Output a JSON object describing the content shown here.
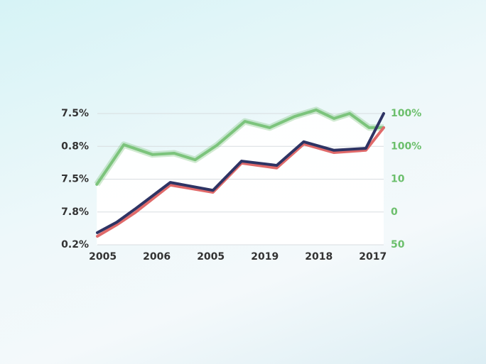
{
  "chart_data": {
    "type": "line",
    "xlim": [
      -0.1,
      5.2
    ],
    "xticks": [
      {
        "value": 0,
        "label": "2005"
      },
      {
        "value": 1,
        "label": "2006"
      },
      {
        "value": 2,
        "label": "2005"
      },
      {
        "value": 3,
        "label": "2019"
      },
      {
        "value": 4,
        "label": "2018"
      },
      {
        "value": 5,
        "label": "2017"
      }
    ],
    "ylim": [
      0,
      4
    ],
    "yticks": [
      {
        "value": 0,
        "label": "0.2%"
      },
      {
        "value": 1,
        "label": "7.8%"
      },
      {
        "value": 2,
        "label": "7.5%"
      },
      {
        "value": 3,
        "label": "0.8%"
      },
      {
        "value": 4,
        "label": "7.5%"
      }
    ],
    "y2lim": [
      0,
      4
    ],
    "y2ticks": [
      {
        "value": 0,
        "label": "50"
      },
      {
        "value": 1,
        "label": "0"
      },
      {
        "value": 2,
        "label": "10"
      },
      {
        "value": 3,
        "label": "100%"
      },
      {
        "value": 4,
        "label": "100%"
      }
    ],
    "grid": true,
    "series": [
      {
        "color": "#7cc47c",
        "axis": "y2",
        "x": [
          -0.11,
          0.39,
          0.92,
          1.32,
          1.71,
          2.11,
          2.63,
          3.09,
          3.55,
          3.95,
          4.28,
          4.57,
          4.93,
          5.2
        ],
        "values": [
          1.84,
          3.05,
          2.75,
          2.79,
          2.59,
          3.03,
          3.76,
          3.57,
          3.91,
          4.11,
          3.85,
          4.0,
          3.57,
          3.57
        ]
      },
      {
        "color": "#e06a6a",
        "x": [
          -0.1,
          0.26,
          0.59,
          1.25,
          2.04,
          2.57,
          3.22,
          3.72,
          4.28,
          4.87,
          5.2
        ],
        "values": [
          0.26,
          0.61,
          0.97,
          1.82,
          1.6,
          2.49,
          2.34,
          3.07,
          2.81,
          2.88,
          3.57
        ]
      },
      {
        "color": "#2e3464",
        "x": [
          -0.1,
          0.26,
          0.59,
          1.25,
          2.04,
          2.57,
          3.22,
          3.72,
          4.28,
          4.87,
          5.2
        ],
        "values": [
          0.37,
          0.69,
          1.08,
          1.9,
          1.66,
          2.55,
          2.42,
          3.14,
          2.88,
          2.94,
          4.0
        ]
      }
    ]
  }
}
